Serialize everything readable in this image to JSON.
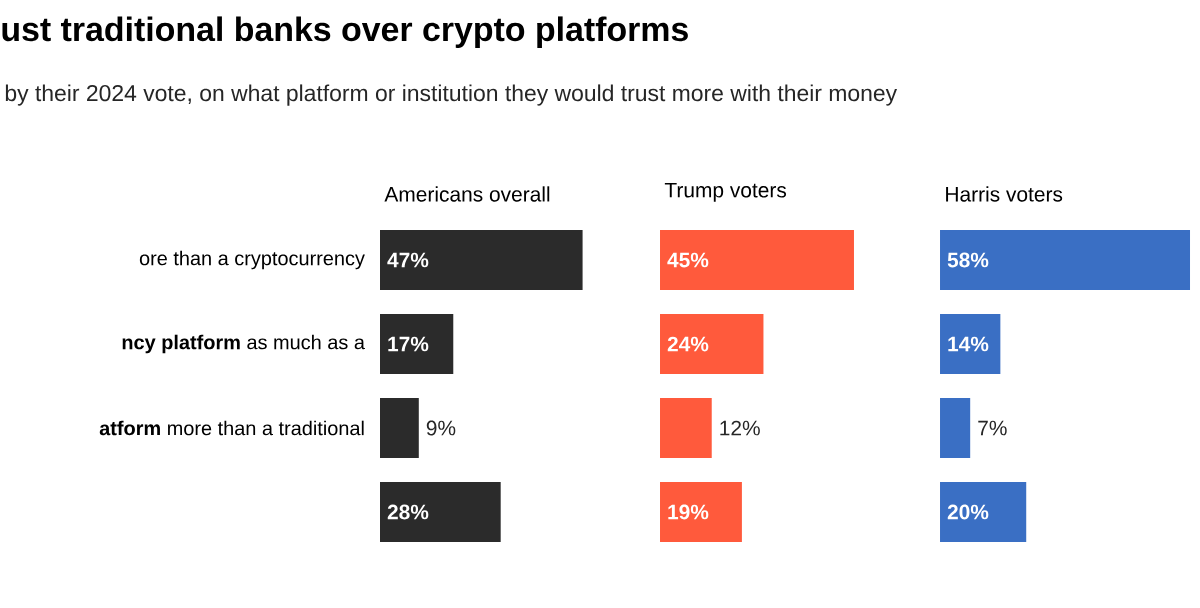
{
  "chart_data": [
    {
      "type": "other",
      "title": "ust traditional banks over crypto platforms",
      "subtitle": "by their 2024 vote, on what platform or institution they would trust more with their money"
    },
    {
      "type": "bar",
      "orientation": "horizontal",
      "title": "Americans overall",
      "categories": [
        "ore than a cryptocurrency",
        "**ncy platform** as much as a",
        "**atform** more than a traditional",
        null
      ],
      "values": [
        47,
        17,
        9,
        28
      ],
      "value_labels": [
        "47%",
        "17%",
        "9%",
        "28%"
      ],
      "color": "#2b2b2b",
      "tick_labels": "y"
    },
    {
      "type": "bar",
      "orientation": "horizontal",
      "title": "Trump voters",
      "values": [
        45,
        24,
        12,
        19
      ],
      "value_labels": [
        "45%",
        "24%",
        "12%",
        "19%"
      ],
      "color": "#ff5a3c",
      "tick_labels": false
    },
    {
      "type": "bar",
      "orientation": "horizontal",
      "title": "Harris voters",
      "values": [
        58,
        14,
        7,
        20
      ],
      "value_labels": [
        "58%",
        "14%",
        "7%",
        "20%"
      ],
      "color": "#3a6fc4",
      "tick_labels": false
    }
  ]
}
